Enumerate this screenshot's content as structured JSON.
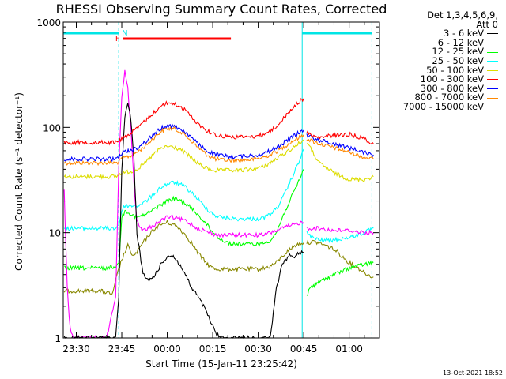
{
  "chart_data": {
    "type": "line",
    "title": "RHESSI Observing Summary Count Rates, Corrected",
    "xlabel": "Start Time (15-Jan-11 23:25:42)",
    "ylabel": "Corrected Count Rate (s⁻¹ detector⁻¹)",
    "yscale": "log",
    "ylim": [
      1,
      1000
    ],
    "y_tick_labels": [
      "1",
      "10",
      "100",
      "1000"
    ],
    "x_tick_labels": [
      "23:30",
      "23:45",
      "00:00",
      "00:15",
      "00:30",
      "00:45",
      "01:00"
    ],
    "x_tick_minutes": [
      30,
      45,
      60,
      75,
      90,
      105,
      120
    ],
    "xlim_minutes": [
      25.7,
      130
    ],
    "legend_header": [
      "Det 1,3,4,5,6,9,",
      "Att 0"
    ],
    "legend_position": "top-right",
    "timestamp": "13-Oct-2021 18:52",
    "markers": {
      "night_label": "N",
      "night_color": "#00e5e5",
      "night_intervals": [
        [
          25.7,
          44
        ],
        [
          104.5,
          127.5
        ]
      ],
      "night_boundaries": [
        44,
        104.5,
        127.5
      ],
      "flare_label": "F",
      "flare_color": "#ff0000",
      "flare_interval": [
        45.5,
        81
      ]
    },
    "series": [
      {
        "name": "3 - 6 keV",
        "color": "#000000",
        "x": [
          26,
          43,
          44,
          45,
          46,
          47,
          48,
          49,
          50,
          52,
          54,
          56,
          58,
          60,
          62,
          64,
          66,
          68,
          70,
          72,
          74,
          76,
          78,
          80,
          82,
          84,
          86,
          88,
          90,
          92,
          94,
          96,
          98,
          100,
          102,
          104,
          105
        ],
        "y": [
          1,
          1,
          2.5,
          40,
          120,
          175,
          120,
          50,
          10,
          4,
          3.5,
          4,
          5,
          6,
          6,
          5,
          4,
          3,
          2.5,
          2,
          1.5,
          1.1,
          1,
          1,
          1,
          1,
          1,
          1,
          1,
          1,
          1,
          3,
          5,
          6,
          6,
          6.5,
          6.5
        ]
      },
      {
        "name": "6 - 12 keV",
        "color": "#ff00ff",
        "x": [
          26,
          27,
          28,
          29,
          30,
          40,
          43,
          44,
          45,
          46,
          47,
          48,
          49,
          50,
          51,
          52,
          54,
          56,
          58,
          60,
          62,
          64,
          66,
          68,
          70,
          72,
          74,
          76,
          78,
          80,
          82,
          84,
          86,
          88,
          90,
          92,
          94,
          96,
          98,
          100,
          102,
          104,
          105
        ],
        "y": [
          25,
          3,
          1.2,
          1,
          1,
          1,
          2.5,
          40,
          200,
          345,
          230,
          100,
          30,
          13,
          11,
          10.5,
          11,
          12,
          13,
          14,
          14,
          13.5,
          13,
          12,
          11,
          10.5,
          10,
          9.5,
          9.5,
          9.5,
          9.5,
          9.5,
          9.5,
          9.5,
          9.5,
          9.5,
          10,
          10.5,
          11,
          11.5,
          12,
          12.5,
          12.5
        ]
      },
      {
        "name": "12 - 25 keV",
        "color": "#00ff00",
        "x": [
          26,
          35,
          40,
          43,
          44,
          45,
          46,
          47,
          48,
          50,
          52,
          54,
          56,
          58,
          60,
          62,
          64,
          66,
          68,
          70,
          72,
          74,
          76,
          78,
          80,
          82,
          84,
          86,
          88,
          90,
          92,
          94,
          96,
          98,
          100,
          102,
          104,
          105
        ],
        "y": [
          4.6,
          4.6,
          4.6,
          4.8,
          5,
          14,
          16,
          16,
          15,
          14,
          14.5,
          15.5,
          17,
          18.5,
          20,
          21,
          20.5,
          19,
          17,
          15,
          13,
          11,
          9.5,
          8.5,
          8,
          7.8,
          7.8,
          7.8,
          7.8,
          7.8,
          8,
          8.5,
          10,
          14,
          19,
          25,
          34,
          40
        ]
      },
      {
        "name": "25 - 50 keV",
        "color": "#00ffff",
        "x": [
          26,
          35,
          40,
          43,
          44,
          45,
          46,
          47,
          48,
          50,
          52,
          54,
          56,
          58,
          60,
          62,
          64,
          66,
          68,
          70,
          72,
          74,
          76,
          78,
          80,
          82,
          84,
          86,
          88,
          90,
          92,
          94,
          96,
          98,
          100,
          102,
          104,
          105
        ],
        "y": [
          11,
          11,
          11,
          11,
          12,
          16,
          18,
          18,
          18,
          18,
          19,
          21,
          24,
          27,
          29,
          30,
          29,
          27,
          24,
          21,
          18,
          16,
          14.5,
          14,
          13.8,
          13.5,
          13.5,
          13.5,
          13.5,
          13.5,
          14,
          15,
          17,
          21,
          28,
          38,
          52,
          62
        ]
      },
      {
        "name": "50 - 100 keV",
        "color": "#dddd00",
        "x": [
          26,
          35,
          40,
          43,
          44,
          45,
          48,
          50,
          52,
          54,
          56,
          58,
          60,
          62,
          64,
          66,
          68,
          70,
          72,
          74,
          76,
          78,
          80,
          82,
          84,
          86,
          88,
          90,
          92,
          94,
          96,
          98,
          100,
          102,
          104,
          105
        ],
        "y": [
          34,
          34,
          34,
          34,
          35,
          37,
          38,
          40,
          44,
          50,
          57,
          63,
          66,
          65,
          62,
          57,
          51,
          46,
          42,
          40,
          39,
          39,
          39,
          39,
          39,
          39.5,
          40,
          41,
          43,
          46,
          50,
          55,
          60,
          66,
          72,
          76
        ]
      },
      {
        "name": "100 - 300 keV",
        "color": "#ff0000",
        "x": [
          26,
          35,
          40,
          43,
          44,
          45,
          48,
          50,
          52,
          54,
          56,
          58,
          60,
          62,
          64,
          66,
          68,
          70,
          72,
          74,
          76,
          78,
          80,
          82,
          84,
          86,
          88,
          90,
          92,
          94,
          96,
          98,
          100,
          102,
          104,
          105
        ],
        "y": [
          72,
          72,
          72,
          72,
          74,
          78,
          88,
          97,
          110,
          125,
          142,
          160,
          170,
          168,
          160,
          145,
          125,
          110,
          98,
          90,
          85,
          83,
          82,
          81,
          81,
          81,
          82,
          83,
          86,
          92,
          102,
          118,
          138,
          160,
          180,
          188
        ]
      },
      {
        "name": "300 - 800 keV",
        "color": "#0000ff",
        "x": [
          26,
          35,
          40,
          43,
          44,
          45,
          48,
          50,
          52,
          54,
          56,
          58,
          60,
          62,
          64,
          66,
          68,
          70,
          72,
          74,
          76,
          78,
          80,
          82,
          84,
          86,
          88,
          90,
          92,
          94,
          96,
          98,
          100,
          102,
          104,
          105
        ],
        "y": [
          50,
          50,
          50,
          50,
          52,
          57,
          61,
          64,
          70,
          78,
          88,
          98,
          104,
          103,
          98,
          90,
          80,
          70,
          63,
          58,
          55,
          54,
          53,
          53,
          53,
          53.5,
          54,
          55,
          57,
          60,
          64,
          70,
          77,
          84,
          91,
          94
        ]
      },
      {
        "name": "800 - 7000 keV",
        "color": "#ff8800",
        "x": [
          26,
          35,
          40,
          43,
          44,
          45,
          48,
          50,
          52,
          54,
          56,
          58,
          60,
          62,
          64,
          66,
          68,
          70,
          72,
          74,
          76,
          78,
          80,
          82,
          84,
          86,
          88,
          90,
          92,
          94,
          96,
          98,
          100,
          102,
          104,
          105
        ],
        "y": [
          46,
          46,
          46,
          46,
          47,
          50,
          54,
          58,
          64,
          72,
          82,
          92,
          98,
          97,
          92,
          84,
          74,
          65,
          58,
          53,
          50,
          49,
          48.5,
          48.5,
          48.5,
          49,
          49.5,
          50.5,
          52.5,
          55,
          59,
          64,
          70,
          76,
          82,
          85
        ]
      },
      {
        "name": "7000 - 15000 keV",
        "color": "#888800",
        "x": [
          26,
          32,
          38,
          42,
          43,
          44,
          45,
          46,
          47,
          48,
          49,
          50,
          52,
          54,
          56,
          58,
          60,
          62,
          64,
          66,
          68,
          70,
          72,
          74,
          76,
          78,
          80,
          82,
          84,
          86,
          88,
          90,
          92,
          94,
          96,
          98,
          100,
          102,
          104,
          105
        ],
        "y": [
          2.8,
          2.8,
          2.8,
          2.6,
          3.5,
          4.5,
          5.5,
          6.5,
          7.5,
          6.5,
          6,
          6.5,
          8,
          9.5,
          11,
          12,
          12.5,
          12,
          11,
          9.5,
          8,
          6.5,
          5.5,
          4.8,
          4.5,
          4.5,
          4.5,
          4.5,
          4.5,
          4.5,
          4.5,
          4.5,
          4.6,
          4.8,
          5.2,
          6,
          6.8,
          7.5,
          8,
          8
        ]
      }
    ],
    "series_after_gap": [
      {
        "name": "3 - 6 keV",
        "x": [],
        "y": []
      },
      {
        "name": "6 - 12 keV",
        "x": [
          106,
          110,
          115,
          120,
          125,
          128
        ],
        "y": [
          11,
          11,
          10.5,
          10.5,
          10,
          10
        ]
      },
      {
        "name": "12 - 25 keV",
        "x": [
          106,
          107,
          110,
          115,
          120,
          125,
          128
        ],
        "y": [
          2.5,
          3,
          3.4,
          4,
          4.6,
          5,
          5.2
        ]
      },
      {
        "name": "25 - 50 keV",
        "x": [
          106,
          108,
          110,
          115,
          120,
          125,
          128
        ],
        "y": [
          10,
          9,
          8.5,
          8.5,
          9,
          10,
          11
        ]
      },
      {
        "name": "50 - 100 keV",
        "x": [
          106,
          108,
          110,
          115,
          120,
          125,
          128
        ],
        "y": [
          72,
          58,
          46,
          37,
          32,
          32,
          34
        ]
      },
      {
        "name": "100 - 300 keV",
        "x": [
          106,
          108,
          110,
          115,
          120,
          125,
          128
        ],
        "y": [
          90,
          82,
          80,
          84,
          86,
          78,
          70
        ]
      },
      {
        "name": "300 - 800 keV",
        "x": [
          106,
          108,
          110,
          115,
          120,
          125,
          128
        ],
        "y": [
          85,
          80,
          76,
          70,
          64,
          58,
          55
        ]
      },
      {
        "name": "800 - 7000 keV",
        "x": [
          106,
          108,
          110,
          115,
          120,
          125,
          128
        ],
        "y": [
          78,
          74,
          70,
          64,
          58,
          52,
          50
        ]
      },
      {
        "name": "7000 - 15000 keV",
        "x": [
          106,
          108,
          110,
          112,
          114,
          116,
          118,
          120,
          122,
          124,
          126,
          128
        ],
        "y": [
          8,
          8.2,
          8,
          7.6,
          7.2,
          6.6,
          5.8,
          5.2,
          4.8,
          4.4,
          4,
          3.8
        ]
      }
    ]
  }
}
